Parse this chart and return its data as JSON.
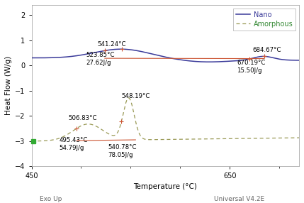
{
  "xlabel": "Temperature (°C)",
  "ylabel": "Heat Flow (W/g)",
  "xlim": [
    450,
    720
  ],
  "ylim": [
    -4,
    2.4
  ],
  "yticks": [
    -4,
    -3,
    -2,
    -1,
    0,
    1,
    2
  ],
  "xticks": [
    450,
    650
  ],
  "nano_color": "#3a3a9a",
  "amorphous_color": "#999955",
  "amorphous_label_color": "#338833",
  "red_color": "#cc5533",
  "footer_left": "Exo Up",
  "footer_right": "Universal V4.2E",
  "bg_color": "#f0ede8",
  "legend_nano_label": "Nano",
  "legend_amorphous_label": "Amorphous"
}
